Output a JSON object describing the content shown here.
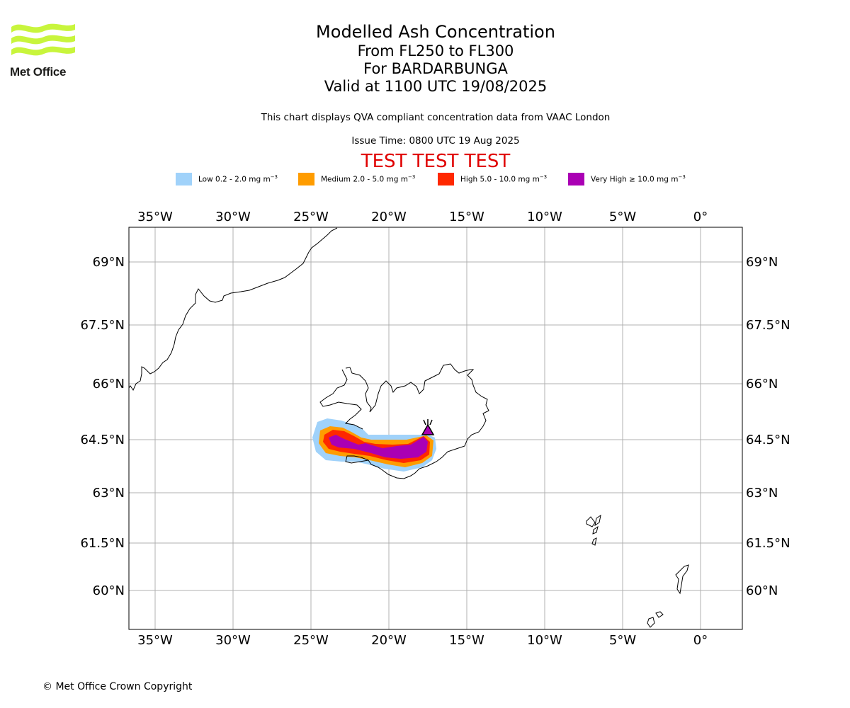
{
  "branding": {
    "logo_text": "Met Office",
    "logo_color": "#c8f53c"
  },
  "header": {
    "title": "Modelled Ash Concentration",
    "levels": "From FL250 to FL300",
    "volcano": "For BARDARBUNGA",
    "valid": "Valid at 1100 UTC 19/08/2025",
    "description": "This chart displays QVA compliant concentration data from VAAC London",
    "issue_time": "Issue Time: 0800 UTC 19 Aug 2025",
    "test_banner": "TEST TEST TEST"
  },
  "legend": [
    {
      "label": "Low 0.2 - 2.0 mg m",
      "color": "#a0d2fa"
    },
    {
      "label": "Medium 2.0 - 5.0 mg m",
      "color": "#ff9c00"
    },
    {
      "label": "High 5.0 - 10.0 mg m",
      "color": "#ff2800"
    },
    {
      "label": "Very High ≥ 10.0 mg m",
      "color": "#aa00b4"
    }
  ],
  "legend_unit_exponent": "−3",
  "map": {
    "lon_ticks": [
      "35°W",
      "30°W",
      "25°W",
      "20°W",
      "15°W",
      "10°W",
      "5°W",
      "0°"
    ],
    "lat_ticks": [
      "69°N",
      "67.5°N",
      "66°N",
      "64.5°N",
      "63°N",
      "61.5°N",
      "60°N"
    ],
    "volcano_marker": "volcano-icon"
  },
  "footer": {
    "copyright": "© Met Office Crown Copyright"
  }
}
